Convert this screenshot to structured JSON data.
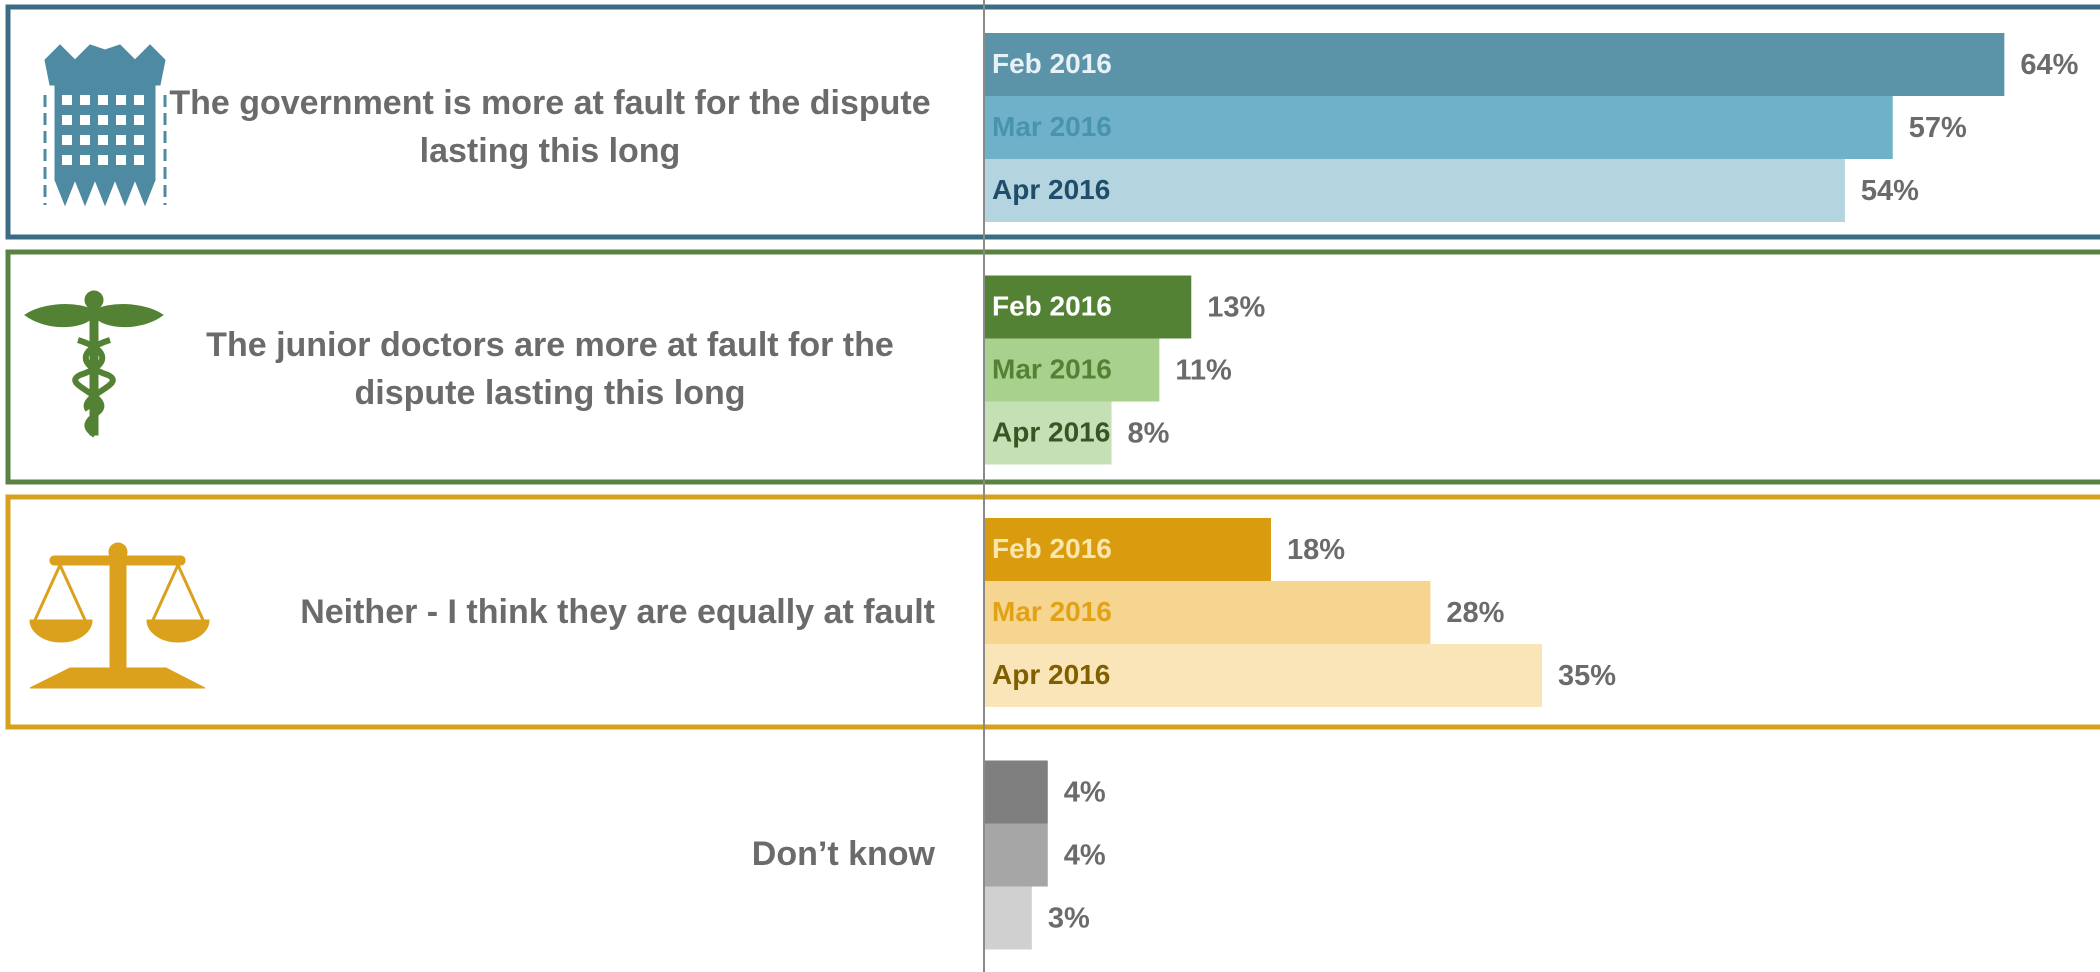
{
  "chart_data": {
    "type": "bar",
    "orientation": "horizontal",
    "categories": [
      "The government is more at fault for the dispute lasting this long",
      "The junior doctors are more at fault for the dispute lasting this long",
      "Neither - I think they are equally at fault",
      "Don’t know"
    ],
    "box_colors": [
      "#3b6c84",
      "#5b8242",
      "#d6a21e"
    ],
    "series": [
      {
        "name": "Feb 2016",
        "colors": [
          "#5b93a8",
          "#548235",
          "#d99c0e",
          "#7f7f7f"
        ],
        "label_colors": [
          "#e8f1f5",
          "#ffffff",
          "#fbe6ad"
        ],
        "values": [
          64,
          13,
          18,
          4
        ],
        "value_labels": [
          "64%",
          "13%",
          "18%",
          "4%"
        ]
      },
      {
        "name": "Mar 2016",
        "colors": [
          "#6fb1c9",
          "#a9d18e",
          "#f5d590",
          "#a6a6a6"
        ],
        "label_colors": [
          "#4a93ad",
          "#548235",
          "#e2a216"
        ],
        "values": [
          57,
          11,
          28,
          4
        ],
        "value_labels": [
          "57%",
          "11%",
          "28%",
          "4%"
        ]
      },
      {
        "name": "Apr 2016",
        "colors": [
          "#b4d4df",
          "#c5e0b4",
          "#fae5b8",
          "#d0d0d0"
        ],
        "label_colors": [
          "#1f4e6b",
          "#375623",
          "#7f5f00"
        ],
        "values": [
          54,
          8,
          35,
          3
        ],
        "value_labels": [
          "54%",
          "8%",
          "35%",
          "3%"
        ]
      }
    ],
    "xlim": [
      0,
      70
    ]
  }
}
